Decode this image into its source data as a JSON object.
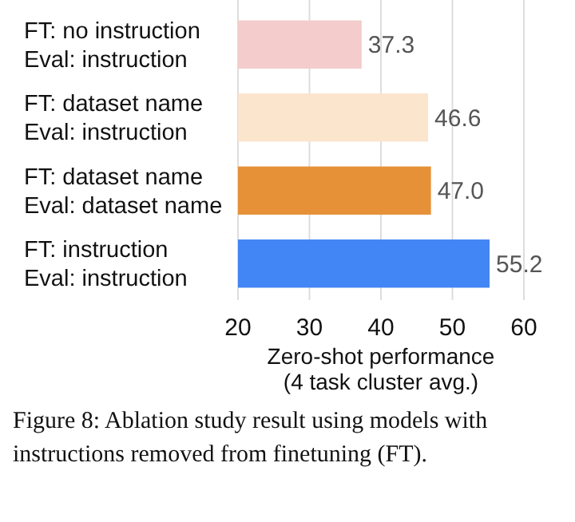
{
  "chart_data": {
    "type": "bar",
    "orientation": "horizontal",
    "categories": [
      "FT: no instruction\nEval: instruction",
      "FT: dataset name\nEval: instruction",
      "FT: dataset name\nEval: dataset name",
      "FT: instruction\nEval: instruction"
    ],
    "values": [
      37.3,
      46.6,
      47.0,
      55.2
    ],
    "colors": [
      "#f4cccc",
      "#fce5cd",
      "#e69138",
      "#4285f4"
    ],
    "value_labels": [
      "37.3",
      "46.6",
      "47.0",
      "55.2"
    ],
    "xlim": [
      20,
      60
    ],
    "xticks": [
      20,
      30,
      40,
      50,
      60
    ],
    "grid": "x",
    "xlabel": "Zero-shot performance\n(4 task cluster avg.)",
    "annotations": [
      "Figure 8:   Ablation study result using models with instructions removed from finetuning (FT)."
    ]
  }
}
